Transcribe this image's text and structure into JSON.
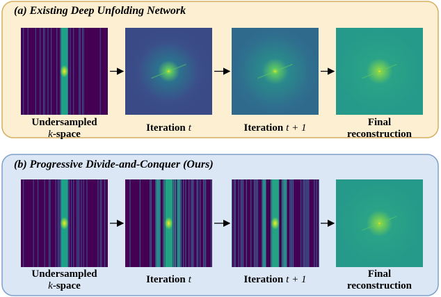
{
  "top": {
    "title": "(a) Existing Deep Unfolding Network",
    "items": [
      {
        "line1": "Undersampled",
        "math": "k",
        "line2": "-space"
      },
      {
        "text": "Iteration",
        "math": "t"
      },
      {
        "text": "Iteration",
        "math": "t + 1"
      },
      {
        "line1": "Final",
        "line2": "reconstruction"
      }
    ]
  },
  "bottom": {
    "title": "(b) Progressive Divide-and-Conquer (Ours)",
    "items": [
      {
        "line1": "Undersampled",
        "math": "k",
        "line2": "-space"
      },
      {
        "text": "Iteration",
        "math": "t"
      },
      {
        "text": "Iteration",
        "math": "t + 1"
      },
      {
        "line1": "Final",
        "line2": "reconstruction"
      }
    ]
  }
}
